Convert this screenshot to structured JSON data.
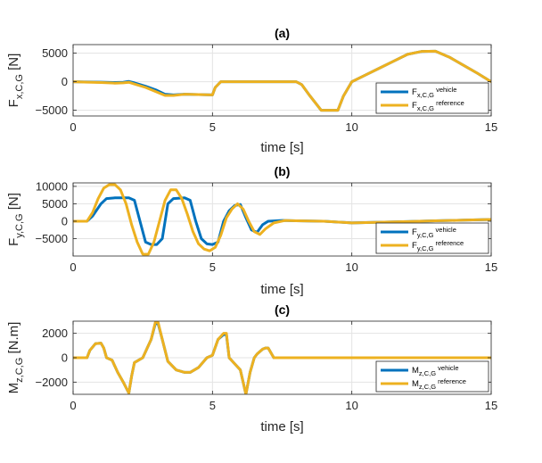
{
  "colors": {
    "vehicle": "#0072BD",
    "reference": "#EDB120",
    "grid": "#e3e3e3",
    "axis": "#262626"
  },
  "chart_data": [
    {
      "type": "line",
      "title": "(a)",
      "xlabel": "time [s]",
      "ylabel_main": "F",
      "ylabel_sub": "x,C,G",
      "ylabel_unit": "[N]",
      "xlim": [
        0,
        15
      ],
      "ylim": [
        -6000,
        6500
      ],
      "xticks": [
        0,
        5,
        10,
        15
      ],
      "yticks": [
        -5000,
        0,
        5000
      ],
      "grid": true,
      "legend_position": "bottom-right",
      "series": [
        {
          "name": "vehicle",
          "label_main": "F",
          "label_sub": "x,C,G",
          "label_suffix": " vehicle",
          "x": [
            0,
            0.5,
            1,
            1.5,
            1.8,
            2.0,
            2.2,
            2.6,
            3.0,
            3.3,
            3.6,
            4.0,
            4.5,
            5.0,
            5.1,
            5.3,
            5.5,
            8.0,
            8.2,
            8.5,
            8.9,
            9.1,
            9.5,
            9.7,
            10.0,
            10.5,
            11.0,
            11.5,
            12.0,
            12.5,
            13.0,
            13.5,
            14.0,
            14.5,
            15.0
          ],
          "y": [
            0,
            -50,
            -80,
            -150,
            -100,
            50,
            -200,
            -800,
            -1500,
            -2200,
            -2300,
            -2200,
            -2250,
            -2300,
            -1000,
            0,
            0,
            0,
            -500,
            -2500,
            -5000,
            -5000,
            -5000,
            -2500,
            0,
            1200,
            2400,
            3600,
            4800,
            5300,
            5350,
            4300,
            2900,
            1500,
            0
          ]
        },
        {
          "name": "reference",
          "label_main": "F",
          "label_sub": "x,C,G",
          "label_suffix": " reference",
          "x": [
            0,
            0.5,
            1,
            1.5,
            1.8,
            2.0,
            2.2,
            2.6,
            3.0,
            3.3,
            3.6,
            4.0,
            4.5,
            5.0,
            5.1,
            5.3,
            5.5,
            8.0,
            8.2,
            8.5,
            8.9,
            9.1,
            9.5,
            9.7,
            10.0,
            10.5,
            11.0,
            11.5,
            12.0,
            12.5,
            13.0,
            13.5,
            14.0,
            14.5,
            15.0
          ],
          "y": [
            0,
            -80,
            -150,
            -250,
            -200,
            -100,
            -400,
            -1000,
            -1800,
            -2400,
            -2400,
            -2200,
            -2250,
            -2300,
            -1000,
            0,
            0,
            0,
            -500,
            -2500,
            -5000,
            -5000,
            -5000,
            -2500,
            0,
            1200,
            2400,
            3600,
            4800,
            5300,
            5350,
            4300,
            2900,
            1500,
            0
          ]
        }
      ]
    },
    {
      "type": "line",
      "title": "(b)",
      "xlabel": "time [s]",
      "ylabel_main": "F",
      "ylabel_sub": "y,C,G",
      "ylabel_unit": "[N]",
      "xlim": [
        0,
        15
      ],
      "ylim": [
        -10000,
        11000
      ],
      "xticks": [
        0,
        5,
        10,
        15
      ],
      "yticks": [
        -5000,
        0,
        5000,
        10000
      ],
      "grid": true,
      "legend_position": "bottom-right",
      "series": [
        {
          "name": "vehicle",
          "label_main": "F",
          "label_sub": "y,C,G",
          "label_suffix": " vehicle",
          "x": [
            0,
            0.5,
            0.7,
            1.0,
            1.2,
            1.5,
            2.0,
            2.2,
            2.4,
            2.6,
            2.8,
            3.0,
            3.2,
            3.4,
            3.6,
            4.0,
            4.2,
            4.4,
            4.6,
            4.8,
            5.0,
            5.2,
            5.4,
            5.6,
            5.8,
            6.0,
            6.2,
            6.4,
            6.6,
            6.8,
            7.0,
            7.5,
            8.0,
            9.0,
            10.0,
            11.0,
            12.0,
            13.0,
            14.0,
            15.0
          ],
          "y": [
            0,
            0,
            1500,
            5000,
            6500,
            6700,
            6700,
            6000,
            0,
            -6000,
            -6700,
            -6700,
            -5000,
            5000,
            6500,
            6700,
            6000,
            0,
            -5000,
            -6500,
            -6700,
            -6000,
            0,
            3000,
            4500,
            4800,
            1000,
            -2500,
            -3200,
            -1000,
            0,
            200,
            100,
            0,
            -500,
            -300,
            -100,
            100,
            300,
            500
          ]
        },
        {
          "name": "reference",
          "label_main": "F",
          "label_sub": "y,C,G",
          "label_suffix": " reference",
          "x": [
            0,
            0.5,
            0.7,
            0.9,
            1.1,
            1.3,
            1.5,
            1.7,
            1.9,
            2.1,
            2.3,
            2.5,
            2.7,
            2.9,
            3.1,
            3.3,
            3.5,
            3.7,
            3.9,
            4.1,
            4.3,
            4.5,
            4.7,
            4.9,
            5.1,
            5.3,
            5.5,
            5.7,
            5.9,
            6.1,
            6.3,
            6.5,
            6.7,
            6.9,
            7.2,
            7.6,
            8.0,
            9.0,
            10.0,
            11.0,
            12.0,
            13.0,
            14.0,
            15.0
          ],
          "y": [
            0,
            0,
            2500,
            6500,
            9500,
            10500,
            10500,
            9000,
            5000,
            -1000,
            -6000,
            -9500,
            -9500,
            -6000,
            0,
            6000,
            9000,
            9000,
            6500,
            2000,
            -3000,
            -6500,
            -8000,
            -8500,
            -7500,
            -4000,
            1000,
            3500,
            5000,
            3500,
            0,
            -3000,
            -3800,
            -2200,
            -500,
            200,
            100,
            0,
            -500,
            -300,
            -100,
            100,
            300,
            500
          ]
        }
      ]
    },
    {
      "type": "line",
      "title": "(c)",
      "xlabel": "time [s]",
      "ylabel_main": "M",
      "ylabel_sub": "z,C,G",
      "ylabel_unit": "[N.m]",
      "xlim": [
        0,
        15
      ],
      "ylim": [
        -3000,
        3000
      ],
      "xticks": [
        0,
        5,
        10,
        15
      ],
      "yticks": [
        -2000,
        0,
        2000
      ],
      "grid": true,
      "legend_position": "bottom-right",
      "series": [
        {
          "name": "vehicle",
          "label_main": "M",
          "label_sub": "z,C,G",
          "label_suffix": " vehicle",
          "x": [
            0,
            0.5,
            0.6,
            0.8,
            1.0,
            1.1,
            1.2,
            1.4,
            1.6,
            1.8,
            2.0,
            2.1,
            2.2,
            2.5,
            2.8,
            2.95,
            3.05,
            3.2,
            3.4,
            3.7,
            4.0,
            4.2,
            4.5,
            4.8,
            5.0,
            5.2,
            5.4,
            5.5,
            5.6,
            5.8,
            6.0,
            6.1,
            6.2,
            6.35,
            6.5,
            6.6,
            6.8,
            6.9,
            7.0,
            7.2,
            8.0,
            10.0,
            15.0
          ],
          "y": [
            0,
            0,
            600,
            1150,
            1200,
            800,
            0,
            -200,
            -1200,
            -2000,
            -2900,
            -1500,
            -400,
            0,
            1500,
            2800,
            2800,
            1500,
            -300,
            -1000,
            -1200,
            -1200,
            -800,
            0,
            200,
            1500,
            1900,
            1900,
            0,
            -500,
            -1000,
            -2000,
            -3000,
            -1200,
            0,
            300,
            700,
            800,
            800,
            0,
            0,
            0,
            0
          ]
        },
        {
          "name": "reference",
          "label_main": "M",
          "label_sub": "z,C,G",
          "label_suffix": " reference",
          "x": [
            0,
            0.5,
            0.6,
            0.8,
            1.0,
            1.1,
            1.2,
            1.4,
            1.6,
            1.8,
            2.0,
            2.1,
            2.2,
            2.5,
            2.8,
            2.95,
            3.05,
            3.2,
            3.4,
            3.7,
            4.0,
            4.2,
            4.5,
            4.8,
            5.0,
            5.2,
            5.4,
            5.5,
            5.6,
            5.8,
            6.0,
            6.1,
            6.2,
            6.35,
            6.5,
            6.6,
            6.8,
            6.9,
            7.0,
            7.2,
            8.0,
            10.0,
            15.0
          ],
          "y": [
            0,
            0,
            600,
            1150,
            1200,
            800,
            0,
            -200,
            -1200,
            -2000,
            -2900,
            -1500,
            -400,
            0,
            1500,
            2900,
            2900,
            1500,
            -300,
            -1000,
            -1200,
            -1200,
            -800,
            0,
            200,
            1500,
            2000,
            2000,
            0,
            -500,
            -1000,
            -2000,
            -3000,
            -1200,
            0,
            300,
            700,
            800,
            800,
            0,
            0,
            0,
            0
          ]
        }
      ]
    }
  ]
}
